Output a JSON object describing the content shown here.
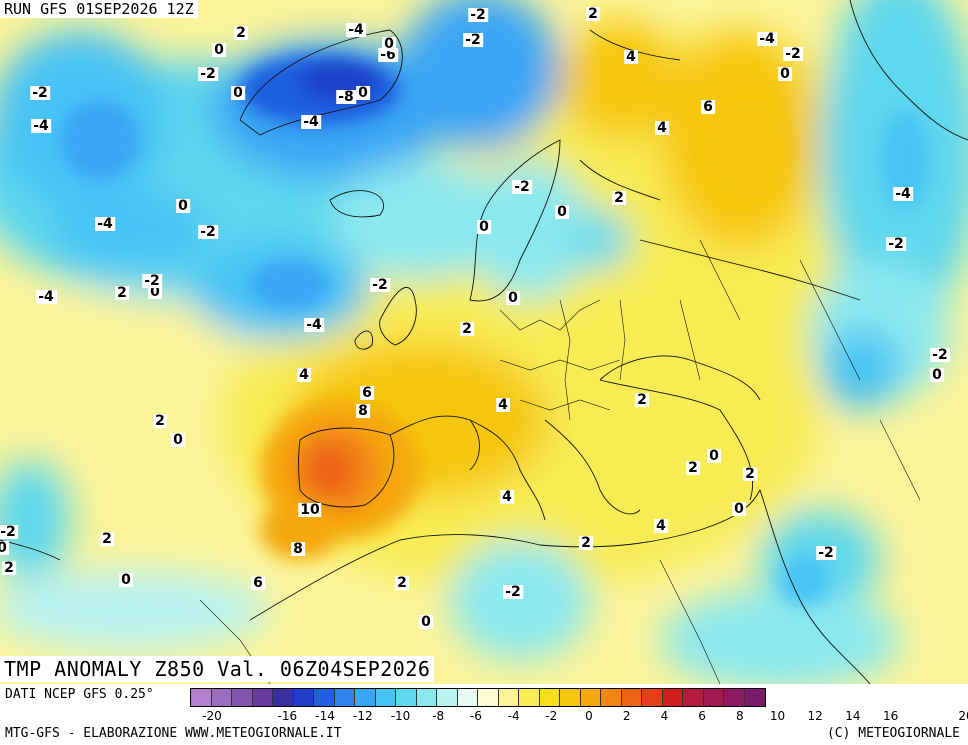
{
  "header": {
    "run_label": "RUN GFS 01SEP2026 12Z"
  },
  "map": {
    "title": "TMP ANOMALY Z850 Val. 06Z04SEP2026",
    "contour_labels": [
      {
        "text": "-2"
      },
      {
        "text": "0"
      },
      {
        "text": "-4"
      },
      {
        "text": "0"
      },
      {
        "text": "-6"
      },
      {
        "text": "-8"
      },
      {
        "text": "0"
      },
      {
        "text": "-4"
      },
      {
        "text": "-2"
      },
      {
        "text": "-4"
      },
      {
        "text": "2"
      },
      {
        "text": "0"
      },
      {
        "text": "-2"
      },
      {
        "text": "-2"
      },
      {
        "text": "-4"
      },
      {
        "text": "0"
      },
      {
        "text": "-4"
      },
      {
        "text": "-2"
      },
      {
        "text": "-2"
      },
      {
        "text": "0"
      },
      {
        "text": "2"
      },
      {
        "text": "-4"
      },
      {
        "text": "-2"
      },
      {
        "text": "-4"
      },
      {
        "text": "2"
      },
      {
        "text": "4"
      },
      {
        "text": "6"
      },
      {
        "text": "4"
      },
      {
        "text": "-4"
      },
      {
        "text": "-2"
      },
      {
        "text": "0"
      },
      {
        "text": "-2"
      },
      {
        "text": "0"
      },
      {
        "text": "2"
      },
      {
        "text": "0"
      },
      {
        "text": "-4"
      },
      {
        "text": "-2"
      },
      {
        "text": "0"
      },
      {
        "text": "2"
      },
      {
        "text": "-2"
      },
      {
        "text": "0"
      },
      {
        "text": "4"
      },
      {
        "text": "6"
      },
      {
        "text": "8"
      },
      {
        "text": "2"
      },
      {
        "text": "0"
      },
      {
        "text": "4"
      },
      {
        "text": "2"
      },
      {
        "text": "2"
      },
      {
        "text": "0"
      },
      {
        "text": "2"
      },
      {
        "text": "10"
      },
      {
        "text": "4"
      },
      {
        "text": "4"
      },
      {
        "text": "0"
      },
      {
        "text": "8"
      },
      {
        "text": "2"
      },
      {
        "text": "-2"
      },
      {
        "text": "0"
      },
      {
        "text": "2"
      },
      {
        "text": "6"
      },
      {
        "text": "2"
      },
      {
        "text": "-2"
      },
      {
        "text": "0"
      },
      {
        "text": "-2"
      },
      {
        "text": "0"
      },
      {
        "text": "2"
      }
    ]
  },
  "legend": {
    "data_source": "DATI NCEP GFS 0.25°",
    "colors": [
      "#b57fcf",
      "#9c6cbf",
      "#8455ae",
      "#6a3b9c",
      "#3a2fa0",
      "#1f3fc8",
      "#1f5fe0",
      "#2f84f0",
      "#3aa6f5",
      "#46c3f5",
      "#5fd8ee",
      "#8ae8ef",
      "#b9f3f2",
      "#e6fbf4",
      "#fdfbd0",
      "#fbf49a",
      "#f8ec55",
      "#f7de1c",
      "#f6c70f",
      "#f5a80f",
      "#f28512",
      "#ee6414",
      "#e43f16",
      "#d01f1e",
      "#b81a3d",
      "#a01a52",
      "#8a1a62",
      "#7a1a6a"
    ],
    "ticks": [
      "-20",
      "-18",
      "-16",
      "-14",
      "-12",
      "-10",
      "-8",
      "-6",
      "-4",
      "-2",
      "0",
      "2",
      "4",
      "6",
      "8",
      "10",
      "12",
      "14",
      "16",
      "18",
      "20"
    ],
    "visible_ticks": [
      "-20",
      "-16",
      "-14",
      "-12",
      "-10",
      "-8",
      "-6",
      "-4",
      "-2",
      "0",
      "2",
      "4",
      "6",
      "8",
      "10",
      "12",
      "14",
      "16",
      "20"
    ]
  },
  "footer": {
    "credit_left": "MTG-GFS - ELABORAZIONE WWW.METEOGIORNALE.IT",
    "credit_right": "(C) METEOGIORNALE"
  }
}
